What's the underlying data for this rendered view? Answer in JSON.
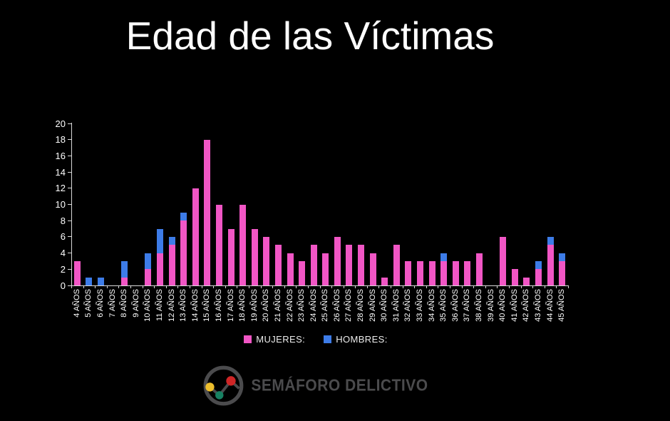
{
  "title": "Edad de las Víctimas",
  "chart_data": {
    "type": "bar",
    "stacked": true,
    "title": "Edad de las Víctimas",
    "categories": [
      "4 AÑOS",
      "5 AÑOS",
      "6 AÑOS",
      "7 AÑOS",
      "8 AÑOS",
      "9 AÑOS",
      "10 AÑOS",
      "11 AÑOS",
      "12 AÑOS",
      "13 AÑOS",
      "14 AÑOS",
      "15 AÑOS",
      "16 AÑOS",
      "17 AÑOS",
      "18 AÑOS",
      "19 AÑOS",
      "20 AÑOS",
      "21 AÑOS",
      "22 AÑOS",
      "23 AÑOS",
      "24 AÑOS",
      "25 AÑOS",
      "26 AÑOS",
      "27 AÑOS",
      "28 AÑOS",
      "29 AÑOS",
      "30 AÑOS",
      "31 AÑOS",
      "32 AÑOS",
      "33 AÑOS",
      "34 AÑOS",
      "35 AÑOS",
      "36 AÑOS",
      "37 AÑOS",
      "38 AÑOS",
      "39 AÑOS",
      "40 AÑOS",
      "41 AÑOS",
      "42 AÑOS",
      "43 AÑOS",
      "44 AÑOS",
      "45 AÑOS"
    ],
    "series": [
      {
        "name": "MUJERES:",
        "color": "#F156C5",
        "values": [
          3,
          0,
          0,
          0,
          1,
          0,
          2,
          4,
          5,
          8,
          12,
          18,
          10,
          7,
          10,
          7,
          6,
          5,
          4,
          3,
          5,
          4,
          6,
          5,
          5,
          4,
          1,
          5,
          3,
          3,
          3,
          3,
          3,
          3,
          4,
          0,
          6,
          2,
          1,
          2,
          5,
          3
        ]
      },
      {
        "name": "HOMBRES:",
        "color": "#3D7CE8",
        "values": [
          0,
          1,
          1,
          0,
          2,
          0,
          2,
          3,
          1,
          1,
          0,
          0,
          0,
          0,
          0,
          0,
          0,
          0,
          0,
          0,
          0,
          0,
          0,
          0,
          0,
          0,
          0,
          0,
          0,
          0,
          0,
          1,
          0,
          0,
          0,
          0,
          0,
          0,
          0,
          1,
          1,
          1
        ]
      }
    ],
    "ylim": [
      0,
      20
    ],
    "ytick_step": 2,
    "grid": false,
    "legend_position": "bottom",
    "axis_color": "#D9D9D9",
    "label_color": "#FFFFFF",
    "background_color": "#000000"
  },
  "footer_logo": {
    "text": "SEMÁFORO DELICTIVO",
    "ring_color": "#4B4B4D",
    "text_color": "#4B4B4D",
    "dot_colors": {
      "yellow": "#EDBE2D",
      "green": "#178062",
      "red": "#CF2526"
    }
  }
}
